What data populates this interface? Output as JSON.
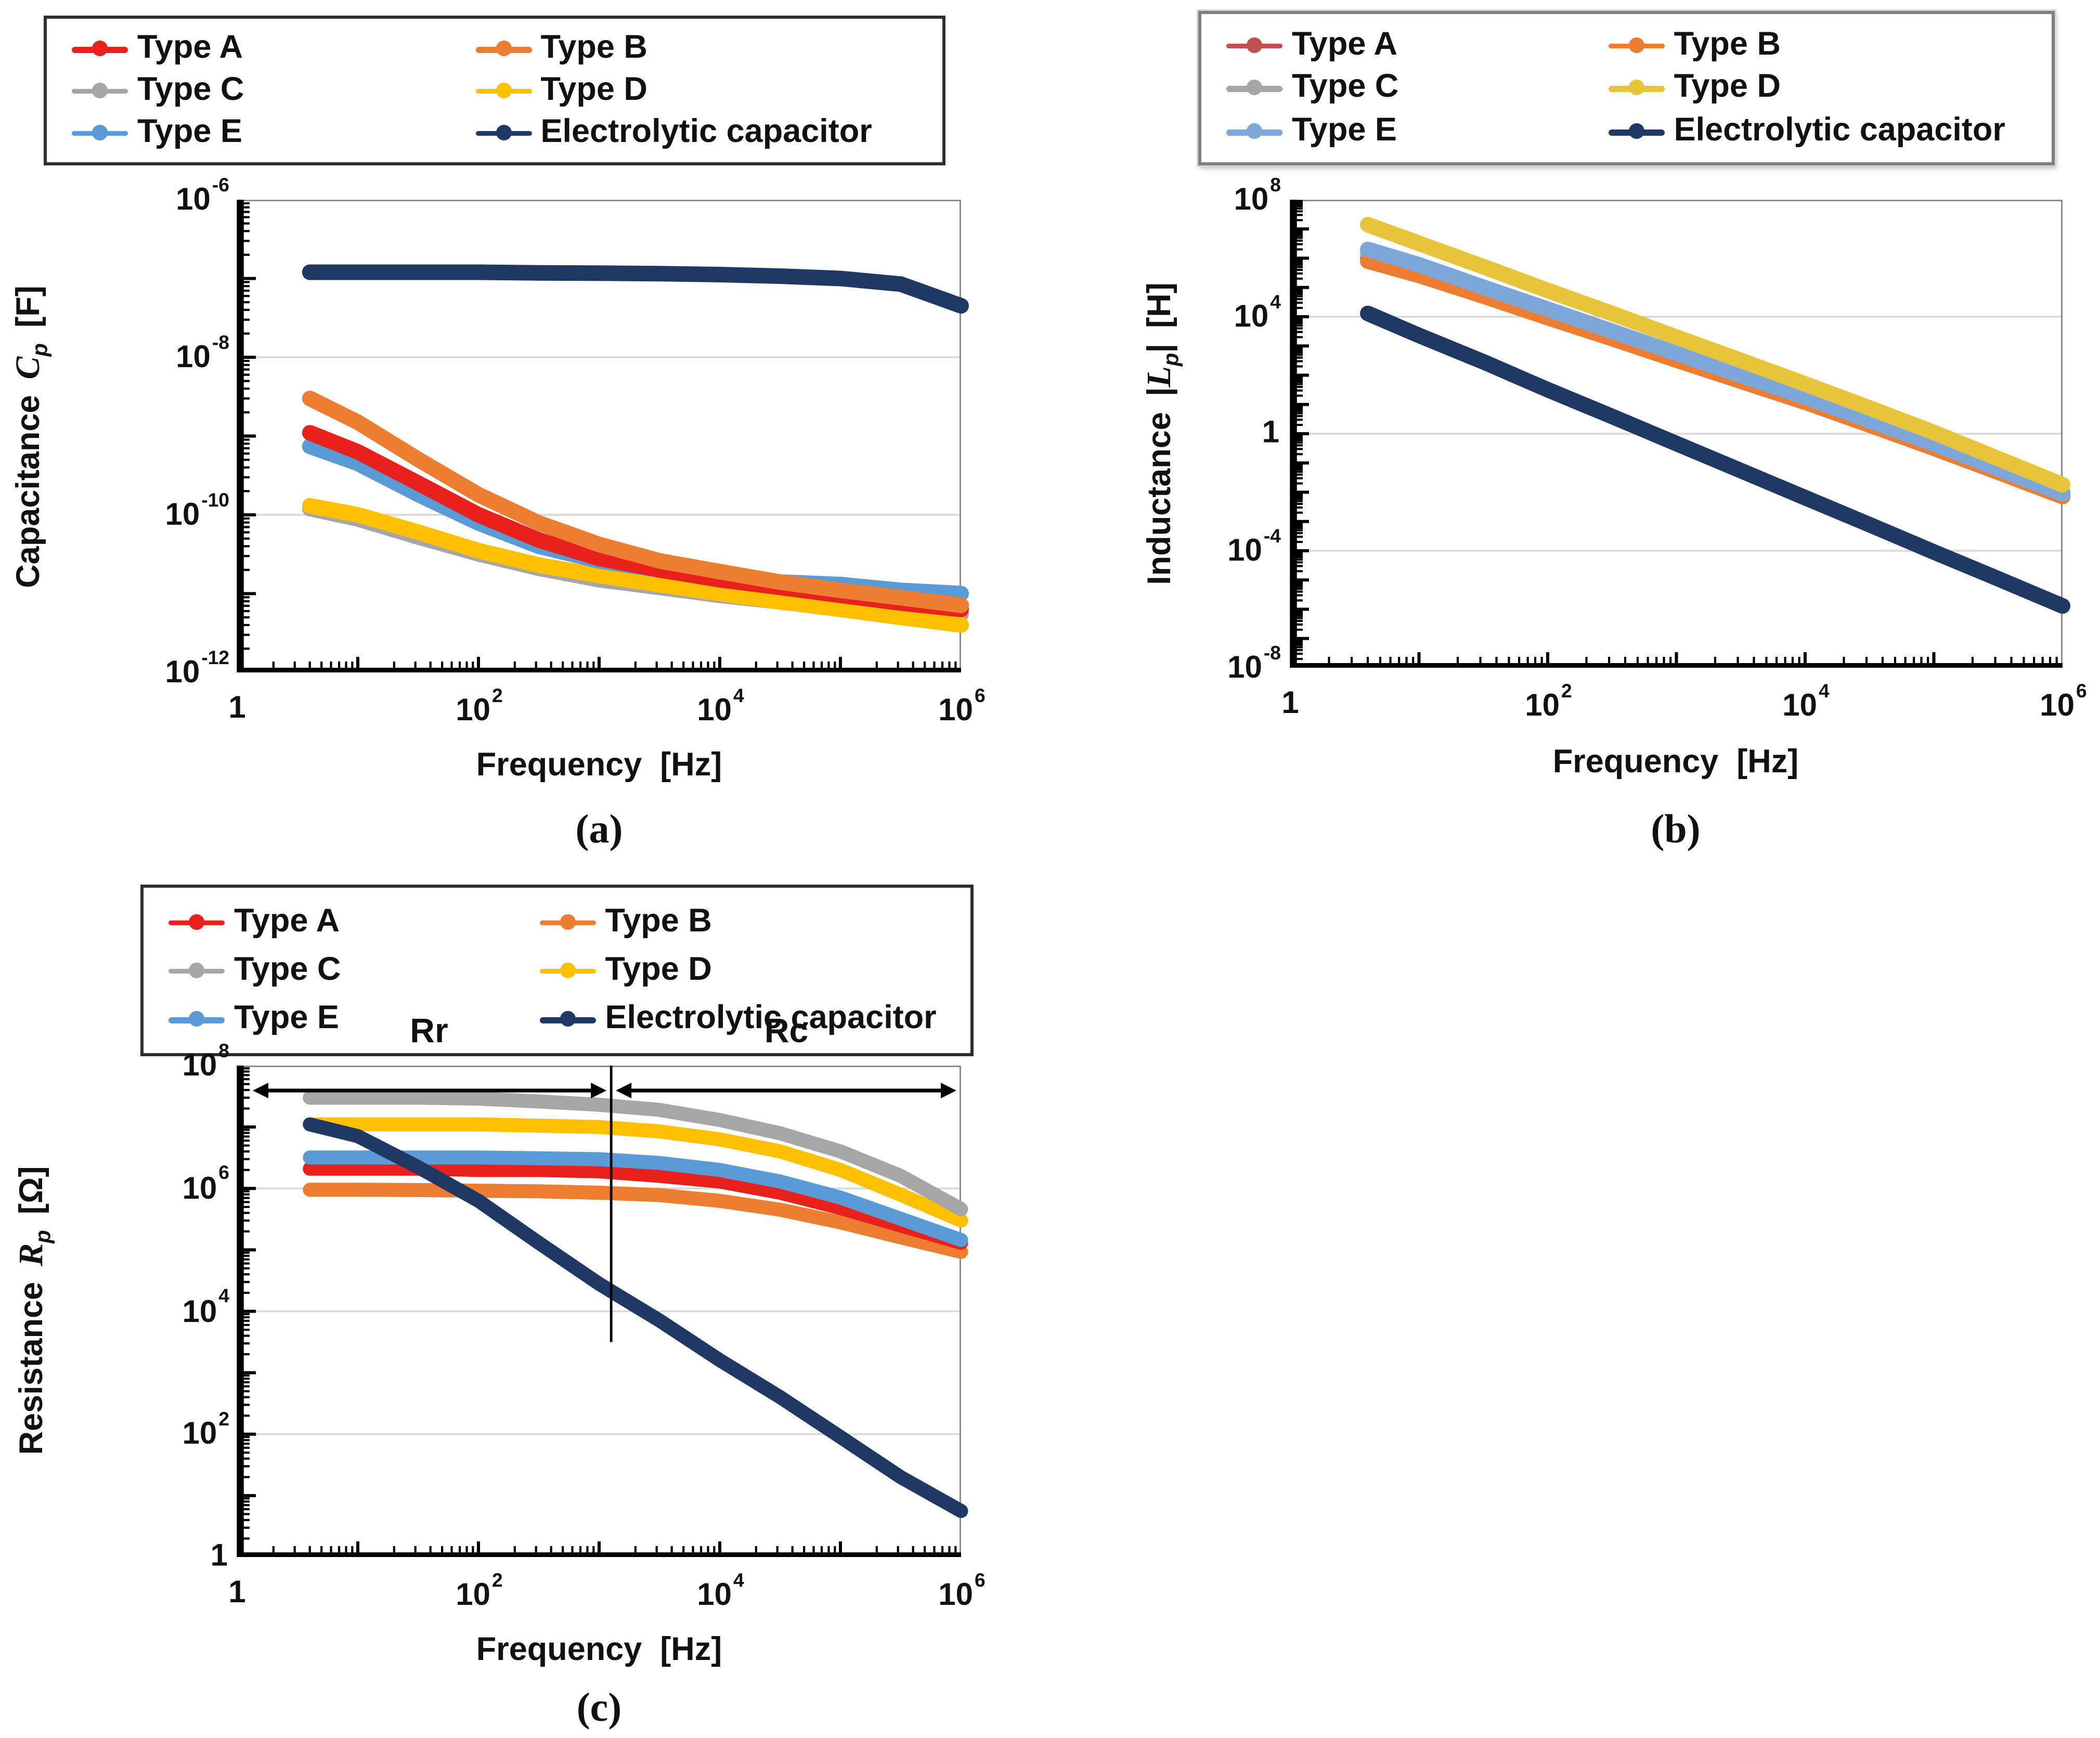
{
  "figure": {
    "background": "#ffffff",
    "text_color": "#111111",
    "gridline_color": "#d8d8d8"
  },
  "chart_data": [
    {
      "id": "a",
      "type": "line",
      "caption": "(a)",
      "x_axis": {
        "title": "Frequency  [Hz]",
        "ticks": [
          "1",
          "10^2",
          "10^4",
          "10^6"
        ],
        "log_range": [
          0,
          6
        ],
        "scale": "log"
      },
      "y_axis": {
        "prefix": "Capacitance",
        "bar_open": "",
        "letter": "C",
        "sub": "p",
        "bar_close": "",
        "unit": "[F]",
        "ticks": [
          "10^-6",
          "10^-8",
          "10^-10",
          "10^-12"
        ],
        "log_range": [
          -12,
          -6
        ],
        "scale": "log"
      },
      "legend_style": "dark",
      "frequencies_hz": [
        4,
        10,
        32,
        100,
        316,
        1000,
        3162,
        10000,
        31623,
        100000,
        316228,
        1000000
      ],
      "draw_order": [
        "Type C",
        "Type D",
        "Type E",
        "Type A",
        "Type B",
        "Electrolytic capacitor"
      ],
      "series": [
        {
          "name": "Type A",
          "color": "#e8211d",
          "values": [
            1.1e-09,
            6.3e-10,
            2.5e-10,
            1e-10,
            4.8e-11,
            2.8e-11,
            2e-11,
            1.5e-11,
            1.2e-11,
            9.5e-12,
            7.6e-12,
            6.3e-12
          ]
        },
        {
          "name": "Type B",
          "color": "#ed7d31",
          "values": [
            3e-09,
            1.5e-09,
            5e-10,
            1.8e-10,
            7.9e-11,
            4.2e-11,
            2.6e-11,
            1.9e-11,
            1.4e-11,
            1.1e-11,
            8.9e-12,
            7.1e-12
          ]
        },
        {
          "name": "Type C",
          "color": "#a6a6a6",
          "values": [
            1.2e-10,
            8.9e-11,
            5.2e-11,
            3.2e-11,
            2.1e-11,
            1.5e-11,
            1.2e-11,
            9.5e-12,
            7.9e-12,
            6.8e-12,
            5.9e-12,
            5.5e-12
          ]
        },
        {
          "name": "Type D",
          "color": "#ffc000",
          "values": [
            1.3e-10,
            1e-10,
            6e-11,
            3.5e-11,
            2.3e-11,
            1.7e-11,
            1.3e-11,
            1e-11,
            7.9e-12,
            6.3e-12,
            5e-12,
            4e-12
          ]
        },
        {
          "name": "Type E",
          "color": "#5b9bd5",
          "values": [
            7.4e-10,
            4.5e-10,
            1.8e-10,
            7.9e-11,
            4e-11,
            2.6e-11,
            2e-11,
            1.7e-11,
            1.4e-11,
            1.3e-11,
            1.1e-11,
            1e-11
          ]
        },
        {
          "name": "Electrolytic capacitor",
          "color": "#1f3864",
          "values": [
            1.2e-07,
            1.2e-07,
            1.2e-07,
            1.2e-07,
            1.18e-07,
            1.17e-07,
            1.15e-07,
            1.12e-07,
            1.07e-07,
            1e-07,
            8.5e-08,
            4.5e-08
          ]
        }
      ]
    },
    {
      "id": "b",
      "type": "line",
      "caption": "(b)",
      "x_axis": {
        "title": "Frequency  [Hz]",
        "ticks": [
          "1",
          "10^2",
          "10^4",
          "10^6"
        ],
        "log_range": [
          0,
          6
        ],
        "scale": "log"
      },
      "y_axis": {
        "prefix": "Inductance",
        "bar_open": "|",
        "letter": "L",
        "sub": "p",
        "bar_close": "|",
        "unit": "[H]",
        "ticks": [
          "10^8",
          "10^4",
          "1",
          "10^-4",
          "10^-8"
        ],
        "log_range": [
          -8,
          8
        ],
        "scale": "log"
      },
      "legend_style": "gray",
      "frequencies_hz": [
        4,
        10,
        32,
        100,
        316,
        1000,
        3162,
        10000,
        31623,
        100000,
        316228,
        1000000
      ],
      "draw_order": [
        "Type A",
        "Type C",
        "Type B",
        "Type E",
        "Type D",
        "Electrolytic capacitor"
      ],
      "series": [
        {
          "name": "Type A",
          "color": "#c0504d",
          "values": [
            1000000.0,
            320000.0,
            59000.0,
            11000.0,
            2100.0,
            400.0,
            74,
            14,
            2.3,
            0.35,
            0.054,
            0.0079
          ]
        },
        {
          "name": "Type B",
          "color": "#ed7d31",
          "values": [
            790000.0,
            260000.0,
            50000.0,
            9300.0,
            1800.0,
            330.0,
            63,
            12,
            2.0,
            0.32,
            0.048,
            0.0071
          ]
        },
        {
          "name": "Type C",
          "color": "#a6a6a6",
          "values": [
            1400000.0,
            430000.0,
            76000.0,
            14000.0,
            2500.0,
            450.0,
            79,
            15,
            2.5,
            0.4,
            0.063,
            0.01
          ]
        },
        {
          "name": "Type D",
          "color": "#e8c43a",
          "values": [
            14000000.0,
            3200000.0,
            500000.0,
            79000.0,
            13000.0,
            2000.0,
            320.0,
            50,
            7.6,
            1.1,
            0.14,
            0.018
          ]
        },
        {
          "name": "Type E",
          "color": "#7da7d8",
          "values": [
            2000000.0,
            600000.0,
            100000.0,
            18000.0,
            3200.0,
            560.0,
            100.0,
            18,
            2.8,
            0.45,
            0.063,
            0.0089
          ]
        },
        {
          "name": "Electrolytic capacitor",
          "color": "#1f3864",
          "values": [
            13000.0,
            2300.0,
            280.0,
            32,
            3.9,
            0.46,
            0.055,
            0.0065,
            0.00078,
            9.1e-05,
            1.1e-05,
            1.3e-06
          ]
        }
      ]
    },
    {
      "id": "c",
      "type": "line",
      "caption": "(c)",
      "x_axis": {
        "title": "Frequency  [Hz]",
        "ticks": [
          "1",
          "10^2",
          "10^4",
          "10^6"
        ],
        "log_range": [
          0,
          6
        ],
        "scale": "log"
      },
      "y_axis": {
        "prefix": "Resistance",
        "bar_open": "",
        "letter": "R",
        "sub": "p",
        "bar_close": "",
        "unit": "[Ω]",
        "ticks": [
          "10^8",
          "10^6",
          "10^4",
          "10^2",
          "1"
        ],
        "log_range": [
          0,
          8
        ],
        "scale": "log"
      },
      "legend_style": "dark",
      "annotations": {
        "region_label_left": "Rr",
        "region_label_right": "Rc",
        "divider_log_f": 3.1,
        "divider_bottom_log_y": 3.5
      },
      "frequencies_hz": [
        4,
        10,
        32,
        100,
        316,
        1000,
        3162,
        10000,
        31623,
        100000,
        316228,
        1000000
      ],
      "draw_order": [
        "Type B",
        "Type A",
        "Type E",
        "Type D",
        "Type C",
        "Electrolytic capacitor"
      ],
      "series": [
        {
          "name": "Type A",
          "color": "#e8211d",
          "values": [
            2100000.0,
            2100000.0,
            2100000.0,
            2000000.0,
            2000000.0,
            1900000.0,
            1600000.0,
            1300000.0,
            850000.0,
            480000.0,
            250000.0,
            130000.0
          ]
        },
        {
          "name": "Type B",
          "color": "#ed7d31",
          "values": [
            950000.0,
            950000.0,
            940000.0,
            920000.0,
            900000.0,
            850000.0,
            780000.0,
            630000.0,
            450000.0,
            280000.0,
            160000.0,
            93000.0
          ]
        },
        {
          "name": "Type C",
          "color": "#a6a6a6",
          "values": [
            30000000.0,
            30000000.0,
            30000000.0,
            29000000.0,
            26000000.0,
            23000000.0,
            19000000.0,
            13000000.0,
            7900000.0,
            4000000.0,
            1600000.0,
            460000.0
          ]
        },
        {
          "name": "Type D",
          "color": "#ffc000",
          "values": [
            11000000.0,
            11000000.0,
            11000000.0,
            11000000.0,
            10500000.0,
            10000000.0,
            8500000.0,
            6300000.0,
            4000000.0,
            2000000.0,
            790000.0,
            300000.0
          ]
        },
        {
          "name": "Type E",
          "color": "#5b9bd5",
          "values": [
            3200000.0,
            3200000.0,
            3200000.0,
            3200000.0,
            3100000.0,
            3000000.0,
            2600000.0,
            2000000.0,
            1300000.0,
            710000.0,
            320000.0,
            145000.0
          ]
        },
        {
          "name": "Electrolytic capacitor",
          "color": "#1f3864",
          "values": [
            11000000.0,
            7100000.0,
            2200000.0,
            630000.0,
            130000.0,
            28000.0,
            7100.0,
            1600.0,
            400.0,
            90,
            20,
            5.6
          ]
        }
      ]
    }
  ]
}
